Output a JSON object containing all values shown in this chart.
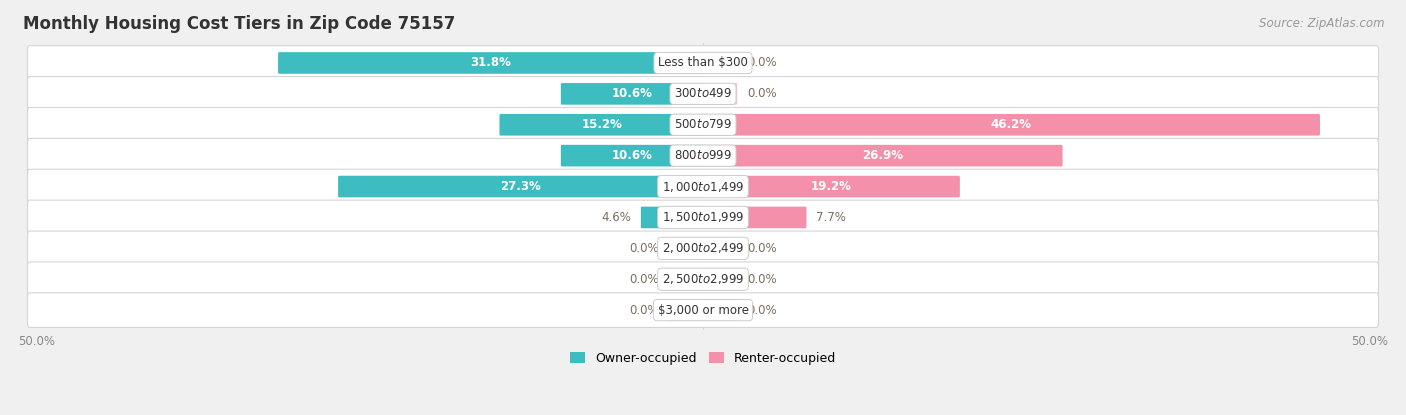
{
  "title": "Monthly Housing Cost Tiers in Zip Code 75157",
  "source": "Source: ZipAtlas.com",
  "categories": [
    "Less than $300",
    "$300 to $499",
    "$500 to $799",
    "$800 to $999",
    "$1,000 to $1,499",
    "$1,500 to $1,999",
    "$2,000 to $2,499",
    "$2,500 to $2,999",
    "$3,000 or more"
  ],
  "owner_values": [
    31.8,
    10.6,
    15.2,
    10.6,
    27.3,
    4.6,
    0.0,
    0.0,
    0.0
  ],
  "renter_values": [
    0.0,
    0.0,
    46.2,
    26.9,
    19.2,
    7.7,
    0.0,
    0.0,
    0.0
  ],
  "owner_color": "#3dbdc0",
  "renter_color": "#f490aa",
  "owner_color_zero": "#96d8da",
  "renter_color_zero": "#f8bccb",
  "label_color_outside": "#7a6e5f",
  "background_color": "#f0f0f0",
  "row_bg_color": "#ffffff",
  "max_value": 50.0,
  "zero_stub": 2.5,
  "axis_label_left": "50.0%",
  "axis_label_right": "50.0%",
  "legend_owner": "Owner-occupied",
  "legend_renter": "Renter-occupied",
  "title_fontsize": 12,
  "source_fontsize": 8.5,
  "bar_label_fontsize": 8.5,
  "category_fontsize": 8.5,
  "legend_fontsize": 9,
  "axis_tick_fontsize": 8.5
}
